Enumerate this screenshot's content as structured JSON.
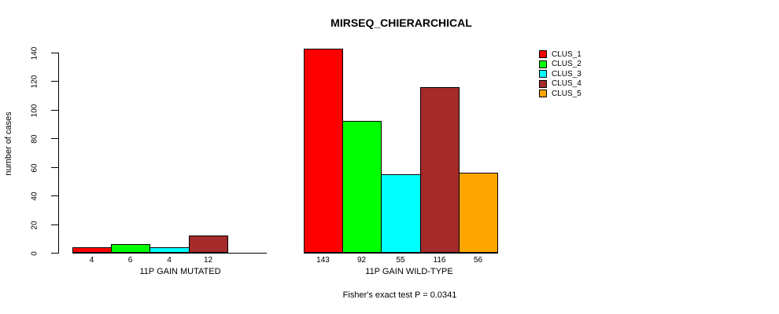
{
  "title": "MIRSEQ_CHIERARCHICAL",
  "y_axis": {
    "label": "number of cases",
    "ticks": [
      0,
      20,
      40,
      60,
      80,
      100,
      120,
      140
    ]
  },
  "footer": "Fisher's exact test P = 0.0341",
  "chart_data": {
    "type": "bar",
    "title": "MIRSEQ_CHIERARCHICAL",
    "xlabel": "",
    "ylabel": "number of cases",
    "ylim": [
      0,
      140
    ],
    "yticks": [
      0,
      20,
      40,
      60,
      80,
      100,
      120,
      140
    ],
    "grid": false,
    "legend_position": "top-right",
    "series_names": [
      "CLUS_1",
      "CLUS_2",
      "CLUS_3",
      "CLUS_4",
      "CLUS_5"
    ],
    "series_colors": [
      "#ff0000",
      "#00ff00",
      "#00ffff",
      "#a52a2a",
      "#ffa500"
    ],
    "categories": [
      "11P GAIN MUTATED",
      "11P GAIN WILD-TYPE"
    ],
    "groups": [
      {
        "label": "11P GAIN MUTATED",
        "values": [
          4,
          6,
          4,
          12,
          0
        ]
      },
      {
        "label": "11P GAIN WILD-TYPE",
        "values": [
          143,
          92,
          55,
          116,
          56
        ]
      }
    ],
    "bar_value_labels_shown": true,
    "annotation": "Fisher's exact test P = 0.0341"
  }
}
